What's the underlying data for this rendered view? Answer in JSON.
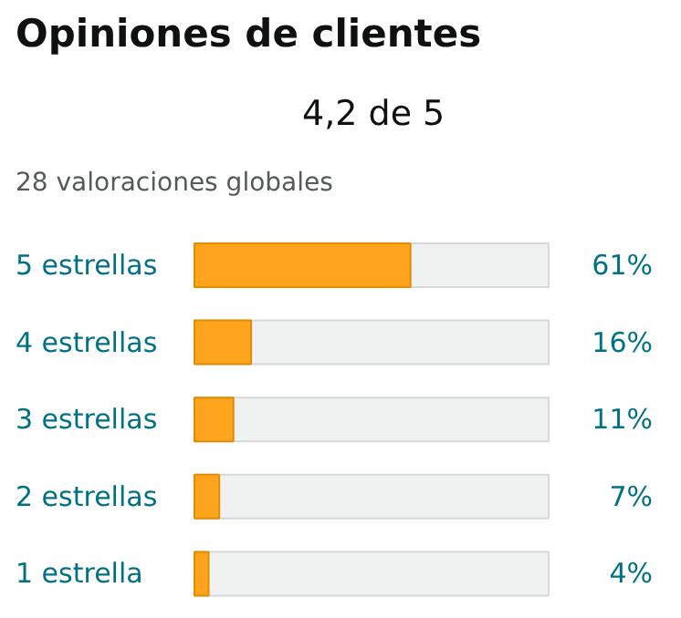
{
  "chart_data": {
    "type": "bar",
    "orientation": "horizontal",
    "title": "Opiniones de clientes",
    "subtitle": "4,2 de 5",
    "annotations": [
      "28 valoraciones globales"
    ],
    "categories": [
      "5 estrellas",
      "4 estrellas",
      "3 estrellas",
      "2 estrellas",
      "1 estrella"
    ],
    "values": [
      61,
      16,
      11,
      7,
      4
    ],
    "value_labels": [
      "61%",
      "16%",
      "11%",
      "7%",
      "4%"
    ],
    "color": "#ffa41c",
    "xlim": [
      0,
      100
    ],
    "tick_labels": "y",
    "grid": false,
    "legend": false
  }
}
